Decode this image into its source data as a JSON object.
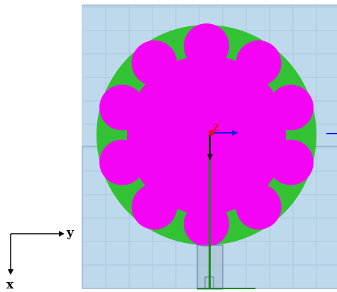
{
  "scene": {
    "substrate_color": "#bed8ec",
    "grid_color": "#a9c7de",
    "ground_color": "#33c233",
    "patch_color": "#f403f4",
    "feed_color": "#148c14",
    "port_color": "#9fb8cf",
    "petal_count": 10
  },
  "axes": {
    "x_label": "x",
    "y_label": "y",
    "z_label": "Z",
    "y_axis_color": "#1a1ae0",
    "x_axis_color": "#1a1a1a",
    "z_axis_color": "#e01010"
  }
}
